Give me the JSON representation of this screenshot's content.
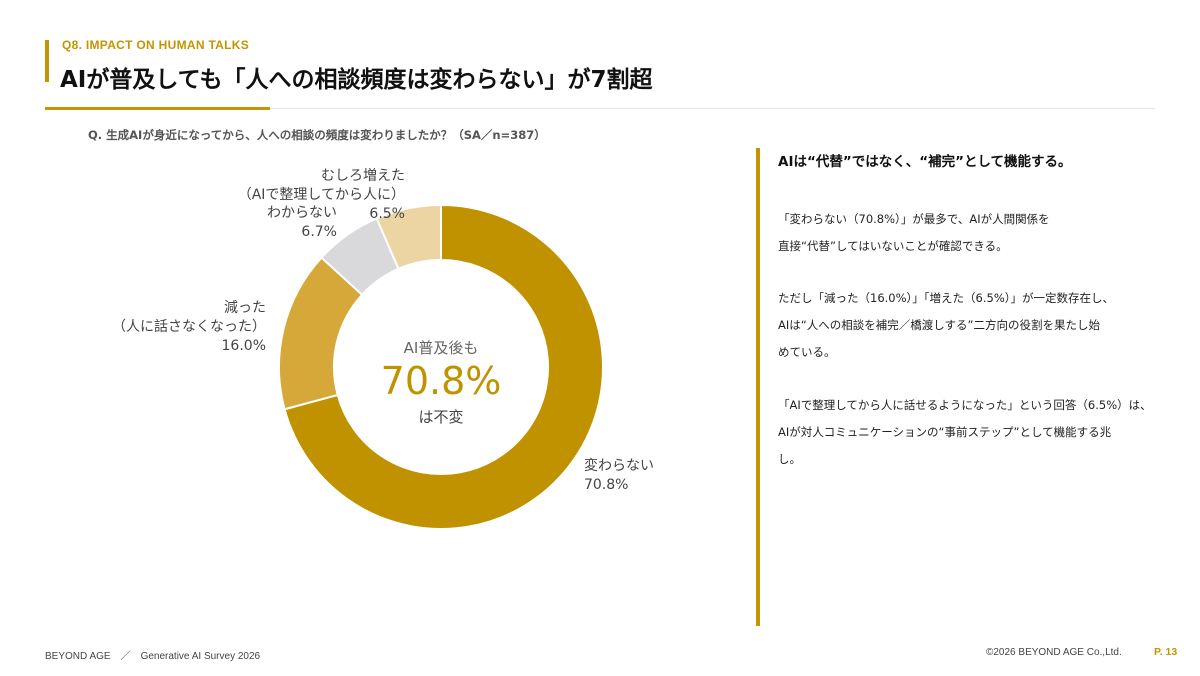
{
  "header": {
    "section_label": "Q8. IMPACT ON HUMAN TALKS",
    "title": "AIが普及しても「人への相談頻度は変わらない」が7割超"
  },
  "question": "Q. 生成AIが身近になってから、人への相談の頻度は変わりましたか？（SA／n=387）",
  "chart_data": {
    "type": "pie",
    "donut": true,
    "slices": [
      {
        "label": "変わらない",
        "value": 70.8,
        "value_text": "70.8%",
        "color": "#c19200"
      },
      {
        "label_lines": [
          "減った",
          "（人に話さなくなった）"
        ],
        "value": 16.0,
        "value_text": "16.0%",
        "color": "#d6a83a"
      },
      {
        "label_lines": [
          "わからない"
        ],
        "value": 6.7,
        "value_text": "6.7%",
        "color": "#d9d9dc"
      },
      {
        "label_lines": [
          "むしろ増えた",
          "（AIで整理してから人に）"
        ],
        "value": 6.5,
        "value_text": "6.5%",
        "color": "#ecd5a3"
      }
    ],
    "center": {
      "top": "AI普及後も",
      "value": "70.8%",
      "bottom": "は不変"
    }
  },
  "sidebar": {
    "heading": "AIは“代替”ではなく、“補完”として機能する。",
    "paragraphs": [
      [
        "「変わらない（70.8%）」が最多で、AIが人間関係を",
        "直接“代替”してはいないことが確認できる。"
      ],
      [
        "ただし「減った（16.0%）」「増えた（6.5%）」が一定数存在し、",
        "AIは“人への相談を補完／橋渡しする”二方向の役割を果たし始",
        "めている。"
      ],
      [
        "「AIで整理してから人に話せるようになった」という回答（6.5%）は、",
        "AIが対人コミュニケーションの“事前ステップ”として機能する兆",
        "し。"
      ]
    ]
  },
  "footer": {
    "left": "BEYOND AGE　／　Generative AI Survey 2026",
    "right": "©2026 BEYOND AGE Co.,Ltd.",
    "page": "P. 13"
  }
}
